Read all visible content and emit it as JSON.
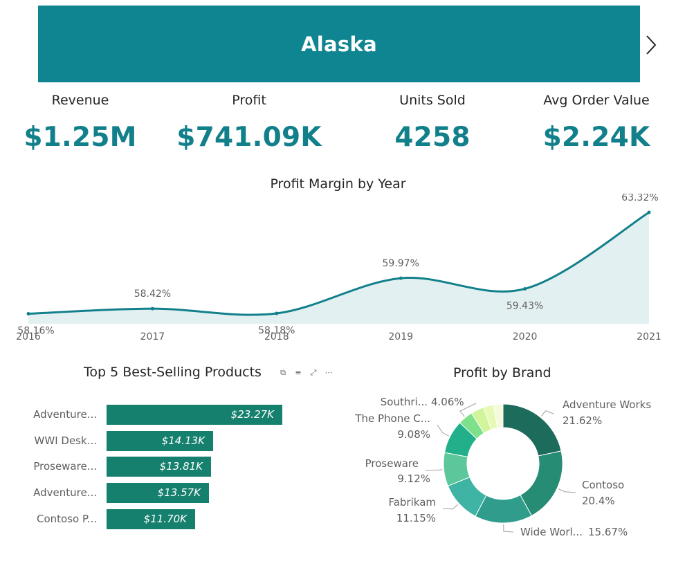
{
  "banner": {
    "title": "Alaska"
  },
  "kpis": [
    {
      "label": "Revenue",
      "value": "$1.25M"
    },
    {
      "label": "Profit",
      "value": "$741.09K"
    },
    {
      "label": "Units Sold",
      "value": "4258"
    },
    {
      "label": "Avg Order Value",
      "value": "$2.24K"
    }
  ],
  "colors": {
    "banner": "#0f8591",
    "kpi_value": "#12808b",
    "line": "#12808b",
    "area": "#e3f0f2",
    "bar": "#15806d"
  },
  "profit_margin_chart": {
    "title": "Profit Margin by Year",
    "chart_data": {
      "type": "area",
      "title": "Profit Margin by Year",
      "x": [
        "2016",
        "2017",
        "2018",
        "2019",
        "2020",
        "2021"
      ],
      "values": [
        58.16,
        58.42,
        58.18,
        59.97,
        59.43,
        63.32
      ],
      "data_labels": [
        "58.16%",
        "58.42%",
        "58.18%",
        "59.97%",
        "59.43%",
        "63.32%"
      ],
      "grid": false
    }
  },
  "top_products_chart": {
    "title": "Top 5 Best-Selling Products",
    "header_icons": [
      "copy-icon",
      "filter-icon",
      "focus-mode-icon",
      "more-options-icon"
    ],
    "chart_data": {
      "type": "bar",
      "orientation": "horizontal",
      "title": "Top 5 Best-Selling Products",
      "categories": [
        "Adventure...",
        "WWI Desk...",
        "Proseware...",
        "Adventure...",
        "Contoso P..."
      ],
      "values": [
        23.27,
        14.13,
        13.81,
        13.57,
        11.7
      ],
      "value_unit": "$K",
      "data_labels": [
        "$23.27K",
        "$14.13K",
        "$13.81K",
        "$13.57K",
        "$11.70K"
      ]
    }
  },
  "profit_by_brand_chart": {
    "title": "Profit by Brand",
    "chart_data": {
      "type": "pie",
      "variant": "donut",
      "title": "Profit by Brand",
      "labels": [
        "Adventure Works",
        "Contoso",
        "Wide Worl...",
        "Fabrikam",
        "Proseware",
        "The Phone C...",
        "Southri...",
        "",
        "",
        ""
      ],
      "values": [
        21.62,
        20.4,
        15.67,
        11.15,
        9.12,
        9.08,
        4.06,
        3.6,
        2.8,
        2.5
      ],
      "data_labels": [
        "21.62%",
        "20.4%",
        "15.67%",
        "11.15%",
        "9.12%",
        "9.08%",
        "4.06%",
        "",
        "",
        ""
      ],
      "colors": [
        "#1d6b5a",
        "#278c74",
        "#2f9c8c",
        "#3fb3a4",
        "#5cc79a",
        "#22b08a",
        "#7ee08a",
        "#d0f59a",
        "#e6fab5",
        "#f4fbdc"
      ]
    }
  }
}
